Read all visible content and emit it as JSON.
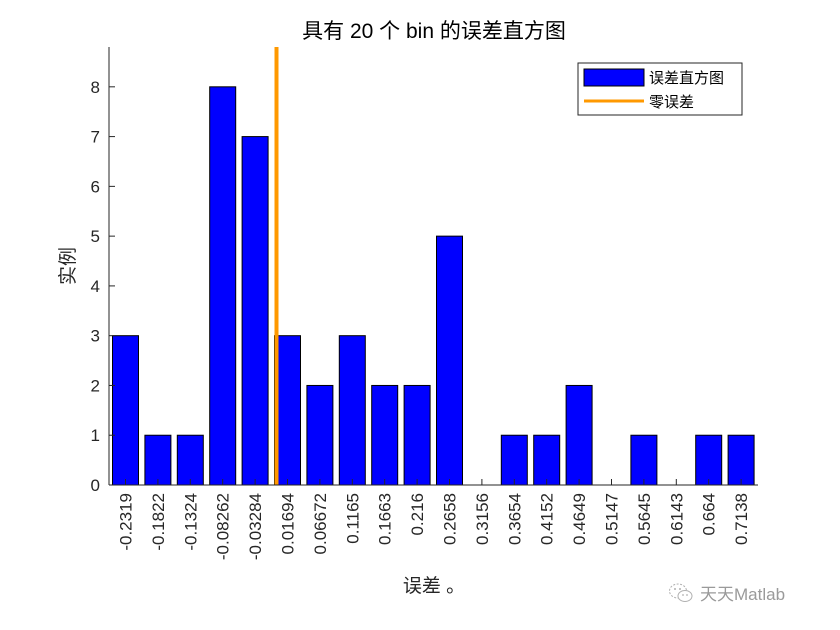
{
  "chart_data": {
    "type": "bar",
    "title": "具有 20 个 bin 的误差直方图",
    "xlabel": "误差 。",
    "ylabel": "实例",
    "categories": [
      "-0.2319",
      "-0.1822",
      "-0.1324",
      "-0.08262",
      "-0.03284",
      "0.01694",
      "0.06672",
      "0.1165",
      "0.1663",
      "0.216",
      "0.2658",
      "0.3156",
      "0.3654",
      "0.4152",
      "0.4649",
      "0.5147",
      "0.5645",
      "0.6143",
      "0.664",
      "0.7138"
    ],
    "values": [
      3,
      1,
      1,
      8,
      7,
      3,
      2,
      3,
      2,
      2,
      5,
      0,
      1,
      1,
      2,
      0,
      1,
      0,
      1,
      1
    ],
    "ylim": [
      0,
      8.8
    ],
    "yticks": [
      0,
      1,
      2,
      3,
      4,
      5,
      6,
      7,
      8
    ],
    "grid": false,
    "legend_position": "northeast",
    "legend": [
      {
        "label": "误差直方图",
        "type": "bar",
        "color": "#0000ff"
      },
      {
        "label": "零误差",
        "type": "line",
        "color": "#ff9900"
      }
    ],
    "reference_line": {
      "label": "零误差",
      "x": 0,
      "color": "#ff9900"
    },
    "bar_color": "#0000ff"
  },
  "watermark": {
    "text": "天天Matlab"
  }
}
